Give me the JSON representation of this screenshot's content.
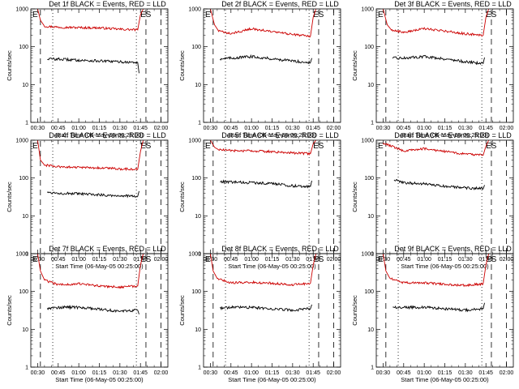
{
  "chart_data": [
    {
      "type": "line",
      "title": "Det 1f BLACK = Events, RED = LLD",
      "xlabel": "Start Time (06-May-05 00:25:00)",
      "ylabel": "Counts/sec",
      "xticks": [
        "00:30",
        "00:45",
        "01:00",
        "01:15",
        "01:30",
        "01:45",
        "02:00"
      ],
      "yticks": [
        "1",
        "10",
        "100",
        "1000"
      ],
      "yscale": "log",
      "ylim": [
        1,
        1000
      ],
      "xlim": [
        "00:25",
        "02:05"
      ],
      "markers": [
        "E",
        "S"
      ],
      "series": [
        {
          "name": "RED = LLD",
          "color": "#cc0000",
          "x": [
            "00:30",
            "00:32",
            "00:35",
            "00:45",
            "01:00",
            "01:15",
            "01:30",
            "01:43",
            "01:45",
            "01:47"
          ],
          "values": [
            1000,
            500,
            350,
            330,
            320,
            315,
            290,
            280,
            700,
            1000
          ]
        },
        {
          "name": "BLACK = Events",
          "color": "#000000",
          "x": [
            "00:37",
            "00:45",
            "01:00",
            "01:15",
            "01:30",
            "01:43",
            "01:44"
          ],
          "values": [
            48,
            47,
            44,
            42,
            40,
            38,
            20
          ]
        }
      ]
    },
    {
      "type": "line",
      "title": "Det 2f BLACK = Events, RED = LLD",
      "xlabel": "Start Time (06-May-05 00:25:00)",
      "ylabel": "Counts/sec",
      "xticks": [
        "00:30",
        "00:45",
        "01:00",
        "01:15",
        "01:30",
        "01:45",
        "02:00"
      ],
      "yticks": [
        "1",
        "10",
        "100",
        "1000"
      ],
      "yscale": "log",
      "ylim": [
        1,
        1000
      ],
      "xlim": [
        "00:25",
        "02:05"
      ],
      "markers": [
        "E",
        "S"
      ],
      "series": [
        {
          "name": "RED = LLD",
          "color": "#cc0000",
          "x": [
            "00:30",
            "00:33",
            "00:36",
            "00:45",
            "01:00",
            "01:15",
            "01:30",
            "01:43",
            "01:45",
            "01:47"
          ],
          "values": [
            1000,
            380,
            260,
            220,
            300,
            250,
            210,
            190,
            600,
            1000
          ]
        },
        {
          "name": "BLACK = Events",
          "color": "#000000",
          "x": [
            "00:37",
            "00:45",
            "01:00",
            "01:15",
            "01:30",
            "01:43",
            "01:44"
          ],
          "values": [
            48,
            50,
            55,
            48,
            42,
            38,
            50
          ]
        }
      ]
    },
    {
      "type": "line",
      "title": "Det 3f BLACK = Events, RED = LLD",
      "xlabel": "Start Time (06-May-05 00:25:00)",
      "ylabel": "Counts/sec",
      "xticks": [
        "00:30",
        "00:45",
        "01:00",
        "01:15",
        "01:30",
        "01:45",
        "02:00"
      ],
      "yticks": [
        "1",
        "10",
        "100",
        "1000"
      ],
      "yscale": "log",
      "ylim": [
        1,
        1000
      ],
      "xlim": [
        "00:25",
        "02:05"
      ],
      "markers": [
        "E",
        "S"
      ],
      "series": [
        {
          "name": "RED = LLD",
          "color": "#cc0000",
          "x": [
            "00:30",
            "00:33",
            "00:36",
            "00:45",
            "01:00",
            "01:15",
            "01:30",
            "01:43",
            "01:45",
            "01:47"
          ],
          "values": [
            1000,
            380,
            280,
            240,
            300,
            260,
            220,
            200,
            600,
            1000
          ]
        },
        {
          "name": "BLACK = Events",
          "color": "#000000",
          "x": [
            "00:37",
            "00:45",
            "01:00",
            "01:15",
            "01:30",
            "01:43",
            "01:44"
          ],
          "values": [
            50,
            50,
            55,
            48,
            40,
            36,
            52
          ]
        }
      ]
    },
    {
      "type": "line",
      "title": "Det 4f BLACK = Events, RED = LLD",
      "xlabel": "Start Time (06-May-05 00:25:00)",
      "ylabel": "Counts/sec",
      "xticks": [
        "00:30",
        "00:45",
        "01:00",
        "01:15",
        "01:30",
        "01:45",
        "02:00"
      ],
      "yticks": [
        "1",
        "10",
        "100",
        "1000"
      ],
      "yscale": "log",
      "ylim": [
        1,
        1000
      ],
      "xlim": [
        "00:25",
        "02:05"
      ],
      "markers": [
        "E",
        "S"
      ],
      "series": [
        {
          "name": "RED = LLD",
          "color": "#cc0000",
          "x": [
            "00:30",
            "00:32",
            "00:35",
            "00:45",
            "01:00",
            "01:15",
            "01:30",
            "01:43",
            "01:45",
            "01:47"
          ],
          "values": [
            1000,
            300,
            220,
            200,
            190,
            185,
            175,
            170,
            500,
            1000
          ]
        },
        {
          "name": "BLACK = Events",
          "color": "#000000",
          "x": [
            "00:37",
            "00:45",
            "01:00",
            "01:15",
            "01:30",
            "01:43",
            "01:44"
          ],
          "values": [
            42,
            40,
            38,
            36,
            34,
            33,
            45
          ]
        }
      ]
    },
    {
      "type": "line",
      "title": "Det 5f BLACK = Events, RED = LLD",
      "xlabel": "Start Time (06-May-05 00:25:00)",
      "ylabel": "Counts/sec",
      "xticks": [
        "00:30",
        "00:45",
        "01:00",
        "01:15",
        "01:30",
        "01:45",
        "02:00"
      ],
      "yticks": [
        "1",
        "10",
        "100",
        "1000"
      ],
      "yscale": "log",
      "ylim": [
        1,
        1000
      ],
      "xlim": [
        "00:25",
        "02:05"
      ],
      "markers": [
        "E",
        "S"
      ],
      "series": [
        {
          "name": "RED = LLD",
          "color": "#cc0000",
          "x": [
            "00:30",
            "00:33",
            "00:36",
            "00:45",
            "01:00",
            "01:15",
            "01:30",
            "01:43",
            "01:45",
            "01:47"
          ],
          "values": [
            1000,
            650,
            560,
            530,
            520,
            500,
            460,
            440,
            800,
            1000
          ]
        },
        {
          "name": "BLACK = Events",
          "color": "#000000",
          "x": [
            "00:37",
            "00:45",
            "01:00",
            "01:15",
            "01:30",
            "01:43",
            "01:44"
          ],
          "values": [
            80,
            78,
            75,
            72,
            62,
            60,
            85
          ]
        }
      ]
    },
    {
      "type": "line",
      "title": "Det 6f BLACK = Events, RED = LLD",
      "xlabel": "Start Time (06-May-05 00:25:00)",
      "ylabel": "Counts/sec",
      "xticks": [
        "00:30",
        "00:45",
        "01:00",
        "01:15",
        "01:30",
        "01:45",
        "02:00"
      ],
      "yticks": [
        "1",
        "10",
        "100",
        "1000"
      ],
      "yscale": "log",
      "ylim": [
        1,
        1000
      ],
      "xlim": [
        "00:25",
        "02:05"
      ],
      "markers": [
        "E",
        "S"
      ],
      "series": [
        {
          "name": "RED = LLD",
          "color": "#cc0000",
          "x": [
            "00:30",
            "00:36",
            "00:45",
            "01:00",
            "01:15",
            "01:30",
            "01:43",
            "01:45",
            "01:47"
          ],
          "values": [
            850,
            700,
            520,
            600,
            500,
            430,
            400,
            700,
            1000
          ]
        },
        {
          "name": "BLACK = Events",
          "color": "#000000",
          "x": [
            "00:38",
            "00:45",
            "01:00",
            "01:15",
            "01:30",
            "01:43",
            "01:44"
          ],
          "values": [
            90,
            75,
            70,
            60,
            55,
            52,
            65
          ]
        }
      ]
    },
    {
      "type": "line",
      "title": "Det 7f BLACK = Events, RED = LLD",
      "xlabel": "Start Time (06-May-05 00:25:00)",
      "ylabel": "Counts/sec",
      "xticks": [
        "00:30",
        "00:45",
        "01:00",
        "01:15",
        "01:30",
        "01:45",
        "02:00"
      ],
      "yticks": [
        "1",
        "10",
        "100",
        "1000"
      ],
      "yscale": "log",
      "ylim": [
        1,
        1000
      ],
      "xlim": [
        "00:25",
        "02:05"
      ],
      "markers": [
        "E",
        "S"
      ],
      "series": [
        {
          "name": "RED = LLD",
          "color": "#cc0000",
          "x": [
            "00:30",
            "00:32",
            "00:35",
            "00:45",
            "01:00",
            "01:15",
            "01:30",
            "01:43",
            "01:45",
            "01:47"
          ],
          "values": [
            1000,
            350,
            200,
            150,
            160,
            140,
            130,
            140,
            500,
            1000
          ]
        },
        {
          "name": "BLACK = Events",
          "color": "#000000",
          "x": [
            "00:37",
            "00:45",
            "01:00",
            "01:15",
            "01:30",
            "01:43",
            "01:44"
          ],
          "values": [
            36,
            38,
            38,
            34,
            30,
            32,
            25
          ]
        }
      ]
    },
    {
      "type": "line",
      "title": "Det 8f BLACK = Events, RED = LLD",
      "xlabel": "Start Time (06-May-05 00:25:00)",
      "ylabel": "Counts/sec",
      "xticks": [
        "00:30",
        "00:45",
        "01:00",
        "01:15",
        "01:30",
        "01:45",
        "02:00"
      ],
      "yticks": [
        "1",
        "10",
        "100",
        "1000"
      ],
      "yscale": "log",
      "ylim": [
        1,
        1000
      ],
      "xlim": [
        "00:25",
        "02:05"
      ],
      "markers": [
        "E",
        "S"
      ],
      "series": [
        {
          "name": "RED = LLD",
          "color": "#cc0000",
          "x": [
            "00:30",
            "00:32",
            "00:35",
            "00:45",
            "01:00",
            "01:15",
            "01:30",
            "01:43",
            "01:45",
            "01:47"
          ],
          "values": [
            1000,
            350,
            220,
            170,
            175,
            165,
            150,
            165,
            500,
            1000
          ]
        },
        {
          "name": "BLACK = Events",
          "color": "#000000",
          "x": [
            "00:37",
            "00:45",
            "01:00",
            "01:15",
            "01:30",
            "01:43",
            "01:44"
          ],
          "values": [
            36,
            38,
            38,
            35,
            32,
            35,
            45
          ]
        }
      ]
    },
    {
      "type": "line",
      "title": "Det 9f BLACK = Events, RED = LLD",
      "xlabel": "Start Time (06-May-05 00:25:00)",
      "ylabel": "Counts/sec",
      "xticks": [
        "00:30",
        "00:45",
        "01:00",
        "01:15",
        "01:30",
        "01:45",
        "02:00"
      ],
      "yticks": [
        "1",
        "10",
        "100",
        "1000"
      ],
      "yscale": "log",
      "ylim": [
        1,
        1000
      ],
      "xlim": [
        "00:25",
        "02:05"
      ],
      "markers": [
        "E",
        "S"
      ],
      "series": [
        {
          "name": "RED = LLD",
          "color": "#cc0000",
          "x": [
            "00:30",
            "00:32",
            "00:35",
            "00:45",
            "01:00",
            "01:15",
            "01:30",
            "01:43",
            "01:45",
            "01:47"
          ],
          "values": [
            1000,
            350,
            220,
            170,
            170,
            155,
            145,
            160,
            500,
            1000
          ]
        },
        {
          "name": "BLACK = Events",
          "color": "#000000",
          "x": [
            "00:37",
            "00:45",
            "01:00",
            "01:15",
            "01:30",
            "01:43",
            "01:44"
          ],
          "values": [
            38,
            38,
            38,
            35,
            32,
            35,
            50
          ]
        }
      ]
    }
  ]
}
